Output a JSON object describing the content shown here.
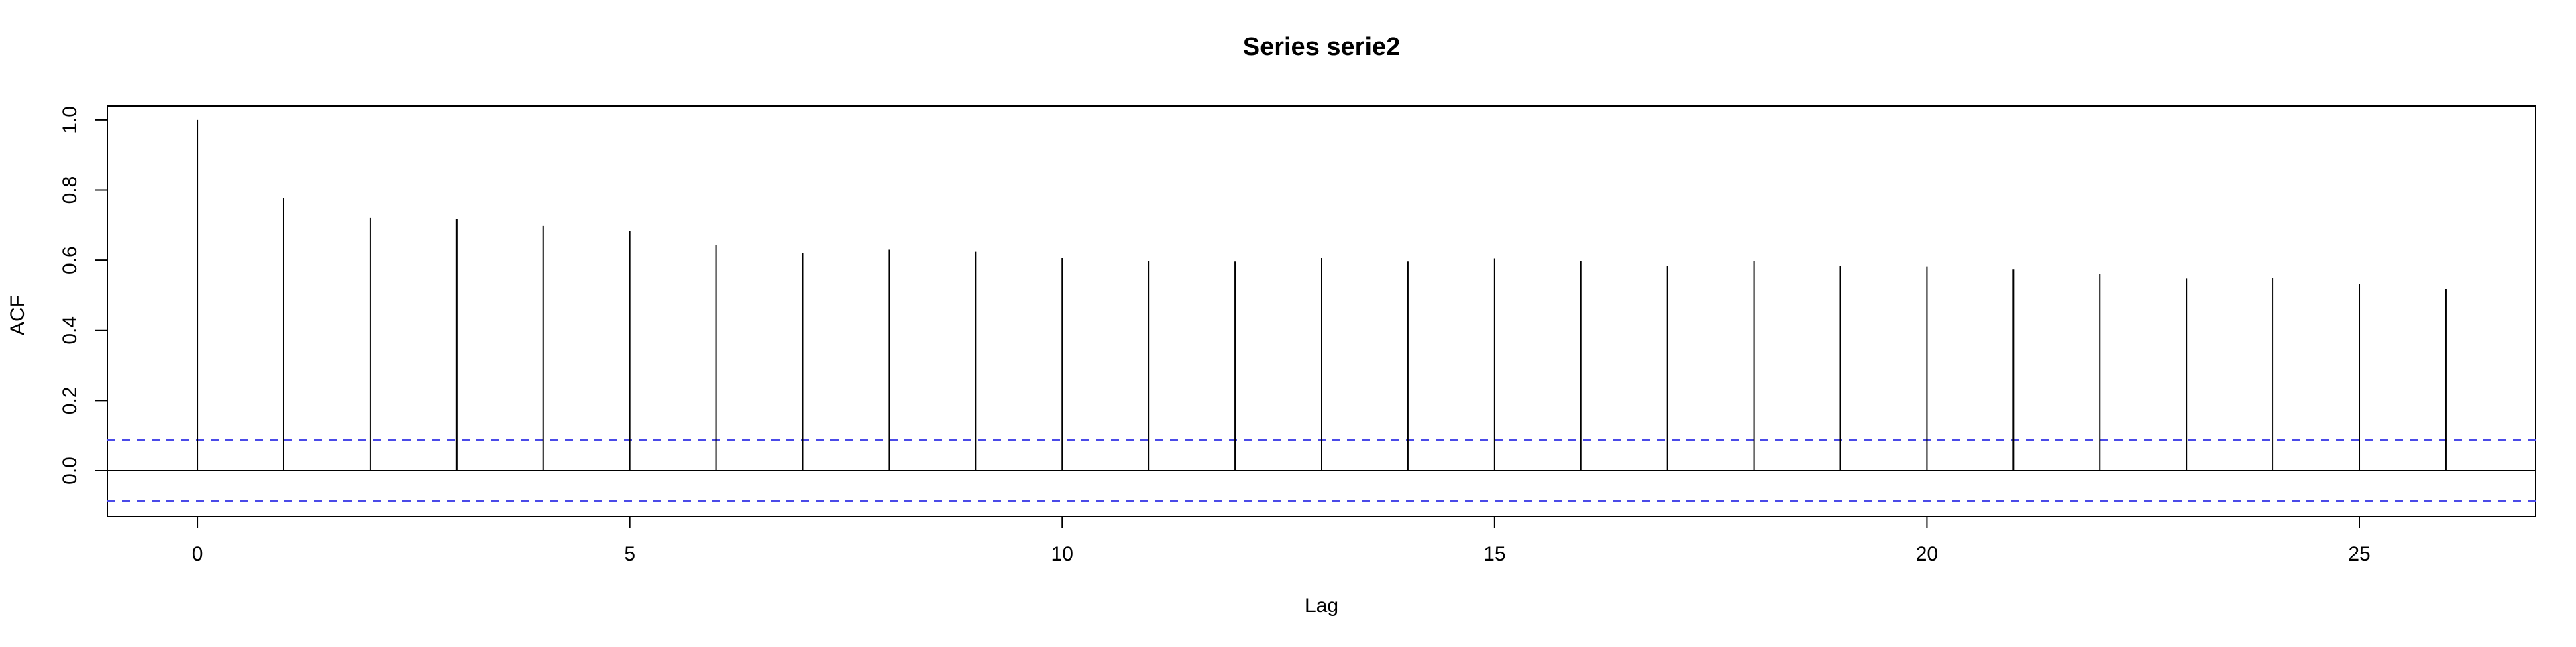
{
  "chart_data": {
    "type": "bar",
    "title": "Series  serie2",
    "xlabel": "Lag",
    "ylabel": "ACF",
    "xlim": [
      -1.04,
      27.04
    ],
    "ylim": [
      -0.13,
      1.04
    ],
    "x_ticks": [
      0,
      5,
      10,
      15,
      20,
      25
    ],
    "x_tick_labels": [
      "0",
      "5",
      "10",
      "15",
      "20",
      "25"
    ],
    "y_ticks": [
      0.0,
      0.2,
      0.4,
      0.6,
      0.8,
      1.0
    ],
    "y_tick_labels": [
      "0.0",
      "0.2",
      "0.4",
      "0.6",
      "0.8",
      "1.0"
    ],
    "lags": [
      0,
      1,
      2,
      3,
      4,
      5,
      6,
      7,
      8,
      9,
      10,
      11,
      12,
      13,
      14,
      15,
      16,
      17,
      18,
      19,
      20,
      21,
      22,
      23,
      24,
      25,
      26
    ],
    "acf": [
      1.0,
      0.778,
      0.721,
      0.718,
      0.698,
      0.684,
      0.643,
      0.62,
      0.63,
      0.624,
      0.606,
      0.597,
      0.596,
      0.606,
      0.596,
      0.605,
      0.597,
      0.585,
      0.597,
      0.585,
      0.582,
      0.575,
      0.561,
      0.548,
      0.55,
      0.532,
      0.518
    ],
    "confidence_bound": 0.087,
    "colors": {
      "spikes": "#000000",
      "confidence_lines": "#4a4ae8",
      "axes": "#000000"
    },
    "grid": false,
    "legend": "none"
  }
}
